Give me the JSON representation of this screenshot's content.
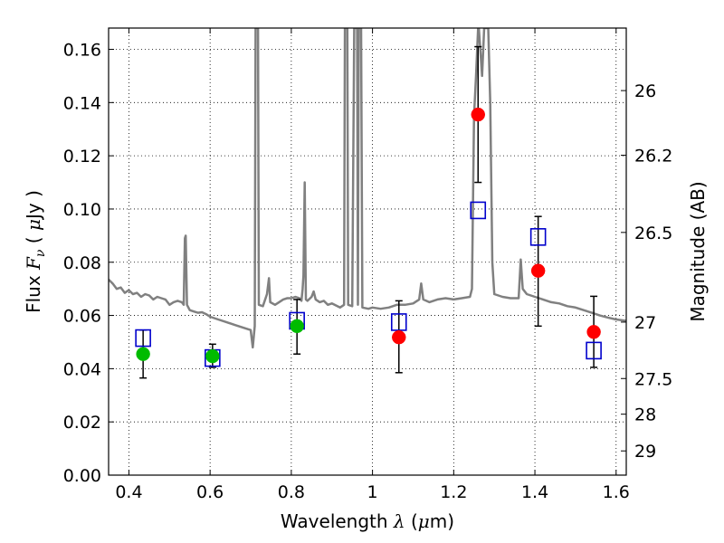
{
  "chart_data": {
    "type": "scatter",
    "xlabel": {
      "pre": "Wavelength  ",
      "math": "λ",
      "post": " (",
      "unit_math": "μ",
      "unit": "m)"
    },
    "ylabel": {
      "pre": "Flux  ",
      "math": "F",
      "sub": "ν",
      "mid": "  ( ",
      "unit_math": "μ",
      "unit": "Jy )"
    },
    "ylabel_right": "Magnitude (AB)",
    "xlim": [
      0.35,
      1.625
    ],
    "ylim": [
      0.0,
      0.168
    ],
    "x_ticks": [
      {
        "v": 0.4,
        "label": "0.4"
      },
      {
        "v": 0.6,
        "label": "0.6"
      },
      {
        "v": 0.8,
        "label": "0.8"
      },
      {
        "v": 1.0,
        "label": "1"
      },
      {
        "v": 1.2,
        "label": "1.2"
      },
      {
        "v": 1.4,
        "label": "1.4"
      },
      {
        "v": 1.6,
        "label": "1.6"
      }
    ],
    "y_ticks": [
      {
        "v": 0.0,
        "label": "0.00"
      },
      {
        "v": 0.02,
        "label": "0.02"
      },
      {
        "v": 0.04,
        "label": "0.04"
      },
      {
        "v": 0.06,
        "label": "0.06"
      },
      {
        "v": 0.08,
        "label": "0.08"
      },
      {
        "v": 0.1,
        "label": "0.10"
      },
      {
        "v": 0.12,
        "label": "0.12"
      },
      {
        "v": 0.14,
        "label": "0.14"
      },
      {
        "v": 0.16,
        "label": "0.16"
      }
    ],
    "right_ticks": [
      {
        "label": "26",
        "flux": 0.1445
      },
      {
        "label": "26.2",
        "flux": 0.1202
      },
      {
        "label": "26.5",
        "flux": 0.0912
      },
      {
        "label": "27",
        "flux": 0.0575
      },
      {
        "label": "27.5",
        "flux": 0.0363
      },
      {
        "label": "28",
        "flux": 0.0229
      },
      {
        "label": "29",
        "flux": 0.0091
      }
    ],
    "grid": true,
    "series": [
      {
        "marker": "circle",
        "color": "#00bb00",
        "points": [
          {
            "x": 0.435,
            "y": 0.0455
          },
          {
            "x": 0.606,
            "y": 0.0447
          },
          {
            "x": 0.814,
            "y": 0.056
          }
        ]
      },
      {
        "marker": "circle",
        "color": "#ff0000",
        "points": [
          {
            "x": 1.065,
            "y": 0.0518
          },
          {
            "x": 1.26,
            "y": 0.1355
          },
          {
            "x": 1.408,
            "y": 0.0768
          },
          {
            "x": 1.545,
            "y": 0.0538
          }
        ]
      },
      {
        "marker": "open-square",
        "color": "#0000cc",
        "points": [
          {
            "x": 0.435,
            "y": 0.0515
          },
          {
            "x": 0.606,
            "y": 0.044
          },
          {
            "x": 0.814,
            "y": 0.058
          },
          {
            "x": 1.065,
            "y": 0.0575
          },
          {
            "x": 1.26,
            "y": 0.0995
          },
          {
            "x": 1.408,
            "y": 0.0895
          },
          {
            "x": 1.545,
            "y": 0.0468
          }
        ]
      },
      {
        "marker": "errorbar",
        "color": "#000000",
        "points": [
          {
            "x": 0.435,
            "low": 0.0365,
            "high": 0.0545
          },
          {
            "x": 0.606,
            "low": 0.0405,
            "high": 0.0492
          },
          {
            "x": 0.814,
            "low": 0.0455,
            "high": 0.066
          },
          {
            "x": 1.065,
            "low": 0.0385,
            "high": 0.0655
          },
          {
            "x": 1.26,
            "low": 0.11,
            "high": 0.161
          },
          {
            "x": 1.408,
            "low": 0.056,
            "high": 0.0972
          },
          {
            "x": 1.545,
            "low": 0.0405,
            "high": 0.0672
          }
        ]
      },
      {
        "marker": "line",
        "color": "#808080",
        "points": [
          [
            0.35,
            0.0735
          ],
          [
            0.36,
            0.072
          ],
          [
            0.37,
            0.07
          ],
          [
            0.38,
            0.0705
          ],
          [
            0.39,
            0.0685
          ],
          [
            0.4,
            0.0695
          ],
          [
            0.41,
            0.068
          ],
          [
            0.42,
            0.0685
          ],
          [
            0.43,
            0.067
          ],
          [
            0.44,
            0.068
          ],
          [
            0.45,
            0.0675
          ],
          [
            0.46,
            0.066
          ],
          [
            0.47,
            0.067
          ],
          [
            0.48,
            0.0665
          ],
          [
            0.49,
            0.066
          ],
          [
            0.5,
            0.064
          ],
          [
            0.51,
            0.065
          ],
          [
            0.52,
            0.0655
          ],
          [
            0.53,
            0.065
          ],
          [
            0.535,
            0.064
          ],
          [
            0.538,
            0.089
          ],
          [
            0.54,
            0.09
          ],
          [
            0.543,
            0.064
          ],
          [
            0.55,
            0.062
          ],
          [
            0.56,
            0.0615
          ],
          [
            0.57,
            0.061
          ],
          [
            0.58,
            0.0612
          ],
          [
            0.59,
            0.0605
          ],
          [
            0.6,
            0.0595
          ],
          [
            0.62,
            0.0585
          ],
          [
            0.64,
            0.0575
          ],
          [
            0.66,
            0.0565
          ],
          [
            0.68,
            0.0555
          ],
          [
            0.7,
            0.0545
          ],
          [
            0.705,
            0.048
          ],
          [
            0.71,
            0.056
          ],
          [
            0.712,
            0.168
          ],
          [
            0.718,
            0.168
          ],
          [
            0.72,
            0.064
          ],
          [
            0.73,
            0.0635
          ],
          [
            0.74,
            0.068
          ],
          [
            0.745,
            0.074
          ],
          [
            0.748,
            0.065
          ],
          [
            0.76,
            0.064
          ],
          [
            0.77,
            0.065
          ],
          [
            0.78,
            0.066
          ],
          [
            0.79,
            0.0665
          ],
          [
            0.8,
            0.0665
          ],
          [
            0.81,
            0.067
          ],
          [
            0.82,
            0.0665
          ],
          [
            0.825,
            0.0655
          ],
          [
            0.828,
            0.07
          ],
          [
            0.83,
            0.075
          ],
          [
            0.833,
            0.11
          ],
          [
            0.836,
            0.066
          ],
          [
            0.84,
            0.0655
          ],
          [
            0.85,
            0.067
          ],
          [
            0.855,
            0.069
          ],
          [
            0.86,
            0.066
          ],
          [
            0.87,
            0.065
          ],
          [
            0.88,
            0.0655
          ],
          [
            0.89,
            0.064
          ],
          [
            0.9,
            0.0645
          ],
          [
            0.92,
            0.063
          ],
          [
            0.93,
            0.064
          ],
          [
            0.932,
            0.168
          ],
          [
            0.938,
            0.168
          ],
          [
            0.94,
            0.064
          ],
          [
            0.95,
            0.0635
          ],
          [
            0.955,
            0.168
          ],
          [
            0.962,
            0.168
          ],
          [
            0.964,
            0.064
          ],
          [
            0.966,
            0.168
          ],
          [
            0.972,
            0.168
          ],
          [
            0.975,
            0.063
          ],
          [
            0.99,
            0.0625
          ],
          [
            1.0,
            0.063
          ],
          [
            1.02,
            0.0625
          ],
          [
            1.04,
            0.063
          ],
          [
            1.06,
            0.064
          ],
          [
            1.08,
            0.064
          ],
          [
            1.1,
            0.0645
          ],
          [
            1.115,
            0.066
          ],
          [
            1.12,
            0.072
          ],
          [
            1.125,
            0.066
          ],
          [
            1.14,
            0.065
          ],
          [
            1.16,
            0.066
          ],
          [
            1.18,
            0.0665
          ],
          [
            1.2,
            0.066
          ],
          [
            1.22,
            0.0665
          ],
          [
            1.24,
            0.067
          ],
          [
            1.245,
            0.07
          ],
          [
            1.25,
            0.135
          ],
          [
            1.255,
            0.15
          ],
          [
            1.26,
            0.168
          ],
          [
            1.262,
            0.168
          ],
          [
            1.27,
            0.15
          ],
          [
            1.275,
            0.168
          ],
          [
            1.285,
            0.168
          ],
          [
            1.29,
            0.14
          ],
          [
            1.295,
            0.08
          ],
          [
            1.3,
            0.068
          ],
          [
            1.32,
            0.067
          ],
          [
            1.34,
            0.0665
          ],
          [
            1.36,
            0.0665
          ],
          [
            1.365,
            0.081
          ],
          [
            1.37,
            0.07
          ],
          [
            1.38,
            0.068
          ],
          [
            1.4,
            0.067
          ],
          [
            1.42,
            0.066
          ],
          [
            1.44,
            0.065
          ],
          [
            1.46,
            0.0645
          ],
          [
            1.48,
            0.0635
          ],
          [
            1.5,
            0.063
          ],
          [
            1.52,
            0.062
          ],
          [
            1.54,
            0.061
          ],
          [
            1.56,
            0.06
          ],
          [
            1.58,
            0.0592
          ],
          [
            1.6,
            0.0585
          ],
          [
            1.625,
            0.058
          ]
        ]
      }
    ]
  }
}
